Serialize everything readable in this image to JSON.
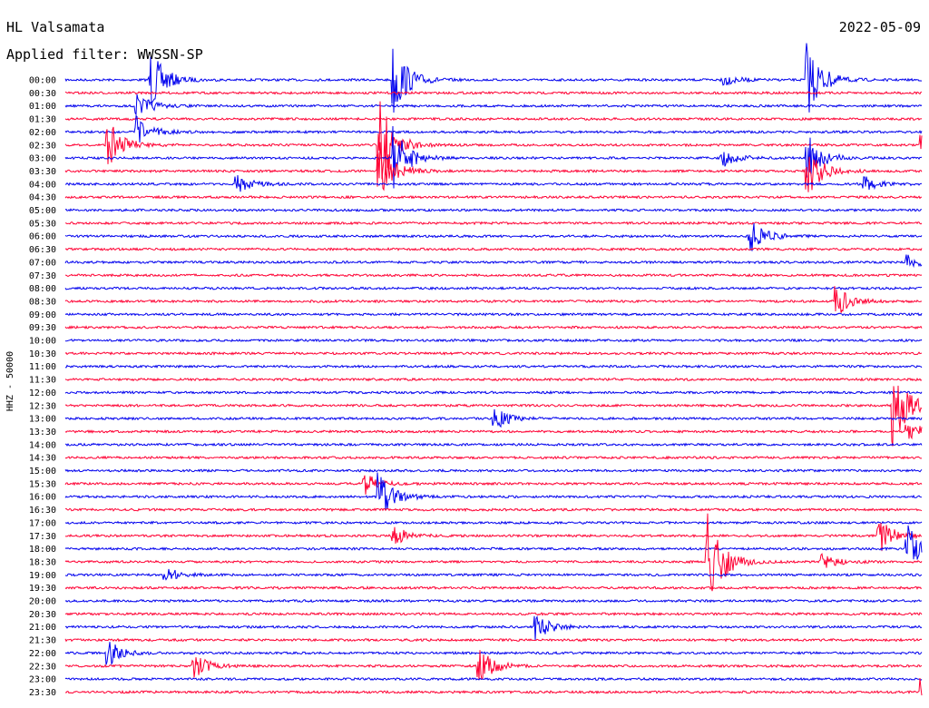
{
  "header": {
    "station": "HL Valsamata",
    "date": "2022-05-09",
    "filter": "Applied filter: WWSSN-SP"
  },
  "chart_data": {
    "type": "line",
    "title": "HL Valsamata",
    "ylabel": "HHZ - 50000",
    "series_colors": [
      "#0000ee",
      "#ff0033"
    ],
    "traces": [
      "00:00",
      "00:30",
      "01:00",
      "01:30",
      "02:00",
      "02:30",
      "03:00",
      "03:30",
      "04:00",
      "04:30",
      "05:00",
      "05:30",
      "06:00",
      "06:30",
      "07:00",
      "07:30",
      "08:00",
      "08:30",
      "09:00",
      "09:30",
      "10:00",
      "10:30",
      "11:00",
      "11:30",
      "12:00",
      "12:30",
      "13:00",
      "13:30",
      "14:00",
      "14:30",
      "15:00",
      "15:30",
      "16:00",
      "16:30",
      "17:00",
      "17:30",
      "18:00",
      "18:30",
      "19:00",
      "19:30",
      "20:00",
      "20:30",
      "21:00",
      "21:30",
      "22:00",
      "22:30",
      "23:00",
      "23:30"
    ],
    "events": [
      {
        "trace": 0,
        "minute": 3,
        "amplitude": 2.4
      },
      {
        "trace": 0,
        "minute": 11.5,
        "amplitude": 3.0
      },
      {
        "trace": 0,
        "minute": 23,
        "amplitude": 0.5
      },
      {
        "trace": 0,
        "minute": 26,
        "amplitude": 3.0
      },
      {
        "trace": 2,
        "minute": 2.5,
        "amplitude": 1.0
      },
      {
        "trace": 4,
        "minute": 2.5,
        "amplitude": 1.2
      },
      {
        "trace": 5,
        "minute": 1.5,
        "amplitude": 2.0
      },
      {
        "trace": 5,
        "minute": 11,
        "amplitude": 4.0
      },
      {
        "trace": 5,
        "minute": 30,
        "amplitude": 0.8
      },
      {
        "trace": 6,
        "minute": 11.5,
        "amplitude": 2.5
      },
      {
        "trace": 6,
        "minute": 23,
        "amplitude": 0.8
      },
      {
        "trace": 6,
        "minute": 26,
        "amplitude": 2.0
      },
      {
        "trace": 7,
        "minute": 11,
        "amplitude": 2.5
      },
      {
        "trace": 7,
        "minute": 26,
        "amplitude": 2.0
      },
      {
        "trace": 8,
        "minute": 6,
        "amplitude": 0.8
      },
      {
        "trace": 8,
        "minute": 28,
        "amplitude": 0.6
      },
      {
        "trace": 12,
        "minute": 24,
        "amplitude": 1.4
      },
      {
        "trace": 14,
        "minute": 29.5,
        "amplitude": 0.6
      },
      {
        "trace": 17,
        "minute": 27,
        "amplitude": 1.2
      },
      {
        "trace": 25,
        "minute": 29,
        "amplitude": 3.5
      },
      {
        "trace": 26,
        "minute": 15,
        "amplitude": 1.0
      },
      {
        "trace": 27,
        "minute": 29.5,
        "amplitude": 1.0
      },
      {
        "trace": 31,
        "minute": 10.5,
        "amplitude": 0.8
      },
      {
        "trace": 32,
        "minute": 11,
        "amplitude": 2.0
      },
      {
        "trace": 35,
        "minute": 11.5,
        "amplitude": 0.8
      },
      {
        "trace": 35,
        "minute": 28.5,
        "amplitude": 1.5
      },
      {
        "trace": 36,
        "minute": 29.5,
        "amplitude": 2.0
      },
      {
        "trace": 37,
        "minute": 22.5,
        "amplitude": 4.5
      },
      {
        "trace": 37,
        "minute": 26.5,
        "amplitude": 0.6
      },
      {
        "trace": 38,
        "minute": 3.5,
        "amplitude": 0.6
      },
      {
        "trace": 42,
        "minute": 16.5,
        "amplitude": 1.0
      },
      {
        "trace": 44,
        "minute": 1.5,
        "amplitude": 1.0
      },
      {
        "trace": 45,
        "minute": 4.5,
        "amplitude": 1.0
      },
      {
        "trace": 45,
        "minute": 14.5,
        "amplitude": 1.4
      },
      {
        "trace": 47,
        "minute": 30,
        "amplitude": 1.2
      }
    ]
  }
}
